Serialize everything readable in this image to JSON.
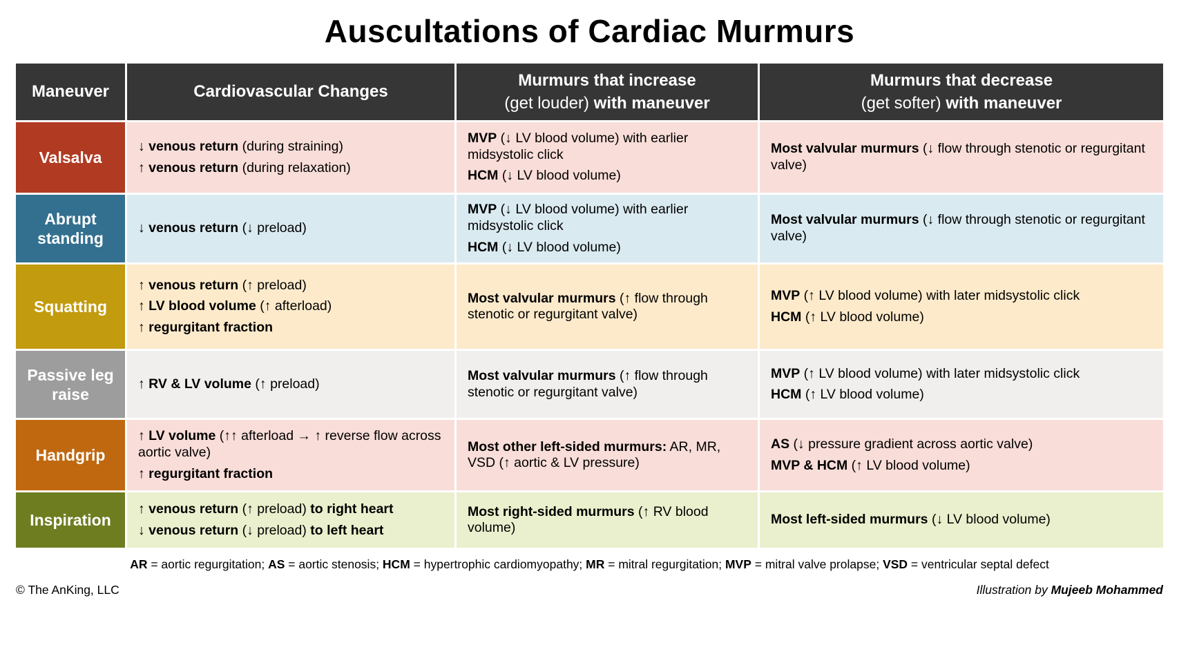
{
  "title": "Auscultations of Cardiac Murmurs",
  "colors": {
    "header_bg": "#363636",
    "header_text": "#ffffff"
  },
  "table": {
    "headers": [
      [
        [
          {
            "t": "Maneuver",
            "b": true
          }
        ]
      ],
      [
        [
          {
            "t": "Cardiovascular Changes",
            "b": true
          }
        ]
      ],
      [
        [
          {
            "t": "Murmurs that increase",
            "b": true
          }
        ],
        [
          {
            "t": "(get louder) ",
            "b": false
          },
          {
            "t": "with maneuver",
            "b": true
          }
        ]
      ],
      [
        [
          {
            "t": "Murmurs that decrease",
            "b": true
          }
        ],
        [
          {
            "t": "(get softer) ",
            "b": false
          },
          {
            "t": "with maneuver",
            "b": true
          }
        ]
      ]
    ],
    "rows": [
      {
        "label": [
          [
            {
              "t": "Valsalva",
              "b": true
            }
          ]
        ],
        "label_bg": "#b03b22",
        "row_bg": "#f8ddd8",
        "cardio": [
          [
            {
              "t": "↓ ",
              "b": false
            },
            {
              "t": "venous return",
              "b": true
            },
            {
              "t": " (during straining)",
              "b": false
            }
          ],
          [
            {
              "t": "↑ ",
              "b": false
            },
            {
              "t": "venous return",
              "b": true
            },
            {
              "t": " (during relaxation)",
              "b": false
            }
          ]
        ],
        "increase": [
          [
            {
              "t": "MVP",
              "b": true
            },
            {
              "t": " (↓ LV blood volume) with earlier midsystolic click",
              "b": false
            }
          ],
          [
            {
              "t": "HCM",
              "b": true
            },
            {
              "t": " (↓ LV blood volume)",
              "b": false
            }
          ]
        ],
        "decrease": [
          [
            {
              "t": "Most valvular murmurs",
              "b": true
            },
            {
              "t": " (↓ flow through stenotic or regurgitant valve)",
              "b": false
            }
          ]
        ]
      },
      {
        "label": [
          [
            {
              "t": "Abrupt standing",
              "b": true
            }
          ]
        ],
        "label_bg": "#33708f",
        "row_bg": "#daeaf1",
        "cardio": [
          [
            {
              "t": "↓ ",
              "b": false
            },
            {
              "t": "venous return",
              "b": true
            },
            {
              "t": " (↓ preload)",
              "b": false
            }
          ]
        ],
        "increase": [
          [
            {
              "t": "MVP",
              "b": true
            },
            {
              "t": " (↓ LV blood volume) with earlier midsystolic click",
              "b": false
            }
          ],
          [
            {
              "t": "HCM",
              "b": true
            },
            {
              "t": " (↓ LV blood volume)",
              "b": false
            }
          ]
        ],
        "decrease": [
          [
            {
              "t": "Most valvular murmurs",
              "b": true
            },
            {
              "t": " (↓ flow through stenotic or regurgitant valve)",
              "b": false
            }
          ]
        ]
      },
      {
        "label": [
          [
            {
              "t": "Squatting",
              "b": true
            }
          ]
        ],
        "label_bg": "#c29b0e",
        "row_bg": "#fdeacb",
        "cardio": [
          [
            {
              "t": "↑ ",
              "b": false
            },
            {
              "t": "venous return",
              "b": true
            },
            {
              "t": " (↑ preload)",
              "b": false
            }
          ],
          [
            {
              "t": "↑ ",
              "b": false
            },
            {
              "t": "LV blood volume",
              "b": true
            },
            {
              "t": " (↑ afterload)",
              "b": false
            }
          ],
          [
            {
              "t": "↑ ",
              "b": false
            },
            {
              "t": "regurgitant fraction",
              "b": true
            }
          ]
        ],
        "increase": [
          [
            {
              "t": "Most valvular murmurs",
              "b": true
            },
            {
              "t": " (↑ flow through stenotic or regurgitant valve)",
              "b": false
            }
          ]
        ],
        "decrease": [
          [
            {
              "t": "MVP",
              "b": true
            },
            {
              "t": " (↑ LV blood volume) with later midsystolic click",
              "b": false
            }
          ],
          [
            {
              "t": "HCM",
              "b": true
            },
            {
              "t": " (↑ LV blood volume)",
              "b": false
            }
          ]
        ]
      },
      {
        "label": [
          [
            {
              "t": "Passive leg raise",
              "b": true
            }
          ]
        ],
        "label_bg": "#9d9d9d",
        "row_bg": "#f0efee",
        "cardio": [
          [
            {
              "t": "↑ ",
              "b": false
            },
            {
              "t": "RV & LV volume",
              "b": true
            },
            {
              "t": " (↑ preload)",
              "b": false
            }
          ]
        ],
        "increase": [
          [
            {
              "t": "Most valvular murmurs",
              "b": true
            },
            {
              "t": " (↑ flow through stenotic or regurgitant valve)",
              "b": false
            }
          ]
        ],
        "decrease": [
          [
            {
              "t": "MVP",
              "b": true
            },
            {
              "t": " (↑ LV blood volume) with later midsystolic click",
              "b": false
            }
          ],
          [
            {
              "t": "HCM",
              "b": true
            },
            {
              "t": " (↑ LV blood volume)",
              "b": false
            }
          ]
        ]
      },
      {
        "label": [
          [
            {
              "t": "Handgrip",
              "b": true
            }
          ]
        ],
        "label_bg": "#c0680f",
        "row_bg": "#f8ddd8",
        "cardio": [
          [
            {
              "t": "↑ ",
              "b": false
            },
            {
              "t": "LV volume",
              "b": true
            },
            {
              "t": " (↑↑ afterload → ↑ reverse flow across aortic valve)",
              "b": false
            }
          ],
          [
            {
              "t": "↑ ",
              "b": false
            },
            {
              "t": "regurgitant fraction",
              "b": true
            }
          ]
        ],
        "increase": [
          [
            {
              "t": "Most other left-sided murmurs:",
              "b": true
            },
            {
              "t": " AR, MR, VSD (↑ aortic & LV pressure)",
              "b": false
            }
          ]
        ],
        "decrease": [
          [
            {
              "t": "AS",
              "b": true
            },
            {
              "t": " (↓ pressure gradient across aortic valve)",
              "b": false
            }
          ],
          [
            {
              "t": "MVP & HCM",
              "b": true
            },
            {
              "t": " (↑ LV blood volume)",
              "b": false
            }
          ]
        ]
      },
      {
        "label": [
          [
            {
              "t": "Inspiration",
              "b": true
            }
          ]
        ],
        "label_bg": "#6f7d21",
        "row_bg": "#eaf0cd",
        "cardio": [
          [
            {
              "t": "↑ ",
              "b": false
            },
            {
              "t": "venous return",
              "b": true
            },
            {
              "t": " (↑ preload) ",
              "b": false
            },
            {
              "t": "to right heart",
              "b": true
            }
          ],
          [
            {
              "t": "↓ ",
              "b": false
            },
            {
              "t": "venous return",
              "b": true
            },
            {
              "t": " (↓ preload) ",
              "b": false
            },
            {
              "t": "to left heart",
              "b": true
            }
          ]
        ],
        "increase": [
          [
            {
              "t": "Most right-sided murmurs",
              "b": true
            },
            {
              "t": " (↑ RV blood volume)",
              "b": false
            }
          ]
        ],
        "decrease": [
          [
            {
              "t": "Most left-sided murmurs",
              "b": true
            },
            {
              "t": " (↓ LV blood volume)",
              "b": false
            }
          ]
        ]
      }
    ]
  },
  "footnote": [
    [
      {
        "t": "AR",
        "b": true
      },
      {
        "t": " = aortic regurgitation; ",
        "b": false
      },
      {
        "t": "AS",
        "b": true
      },
      {
        "t": " = aortic stenosis; ",
        "b": false
      },
      {
        "t": "HCM",
        "b": true
      },
      {
        "t": " = hypertrophic cardiomyopathy; ",
        "b": false
      },
      {
        "t": "MR",
        "b": true
      },
      {
        "t": " = mitral regurgitation; ",
        "b": false
      },
      {
        "t": "MVP",
        "b": true
      },
      {
        "t": " = mitral valve prolapse; ",
        "b": false
      },
      {
        "t": "VSD",
        "b": true
      },
      {
        "t": " = ventricular septal defect",
        "b": false
      }
    ]
  ],
  "copyright": "© The AnKing, LLC",
  "credit": [
    [
      {
        "t": "Illustration by ",
        "b": false
      },
      {
        "t": "Mujeeb Mohammed",
        "b": true
      }
    ]
  ]
}
